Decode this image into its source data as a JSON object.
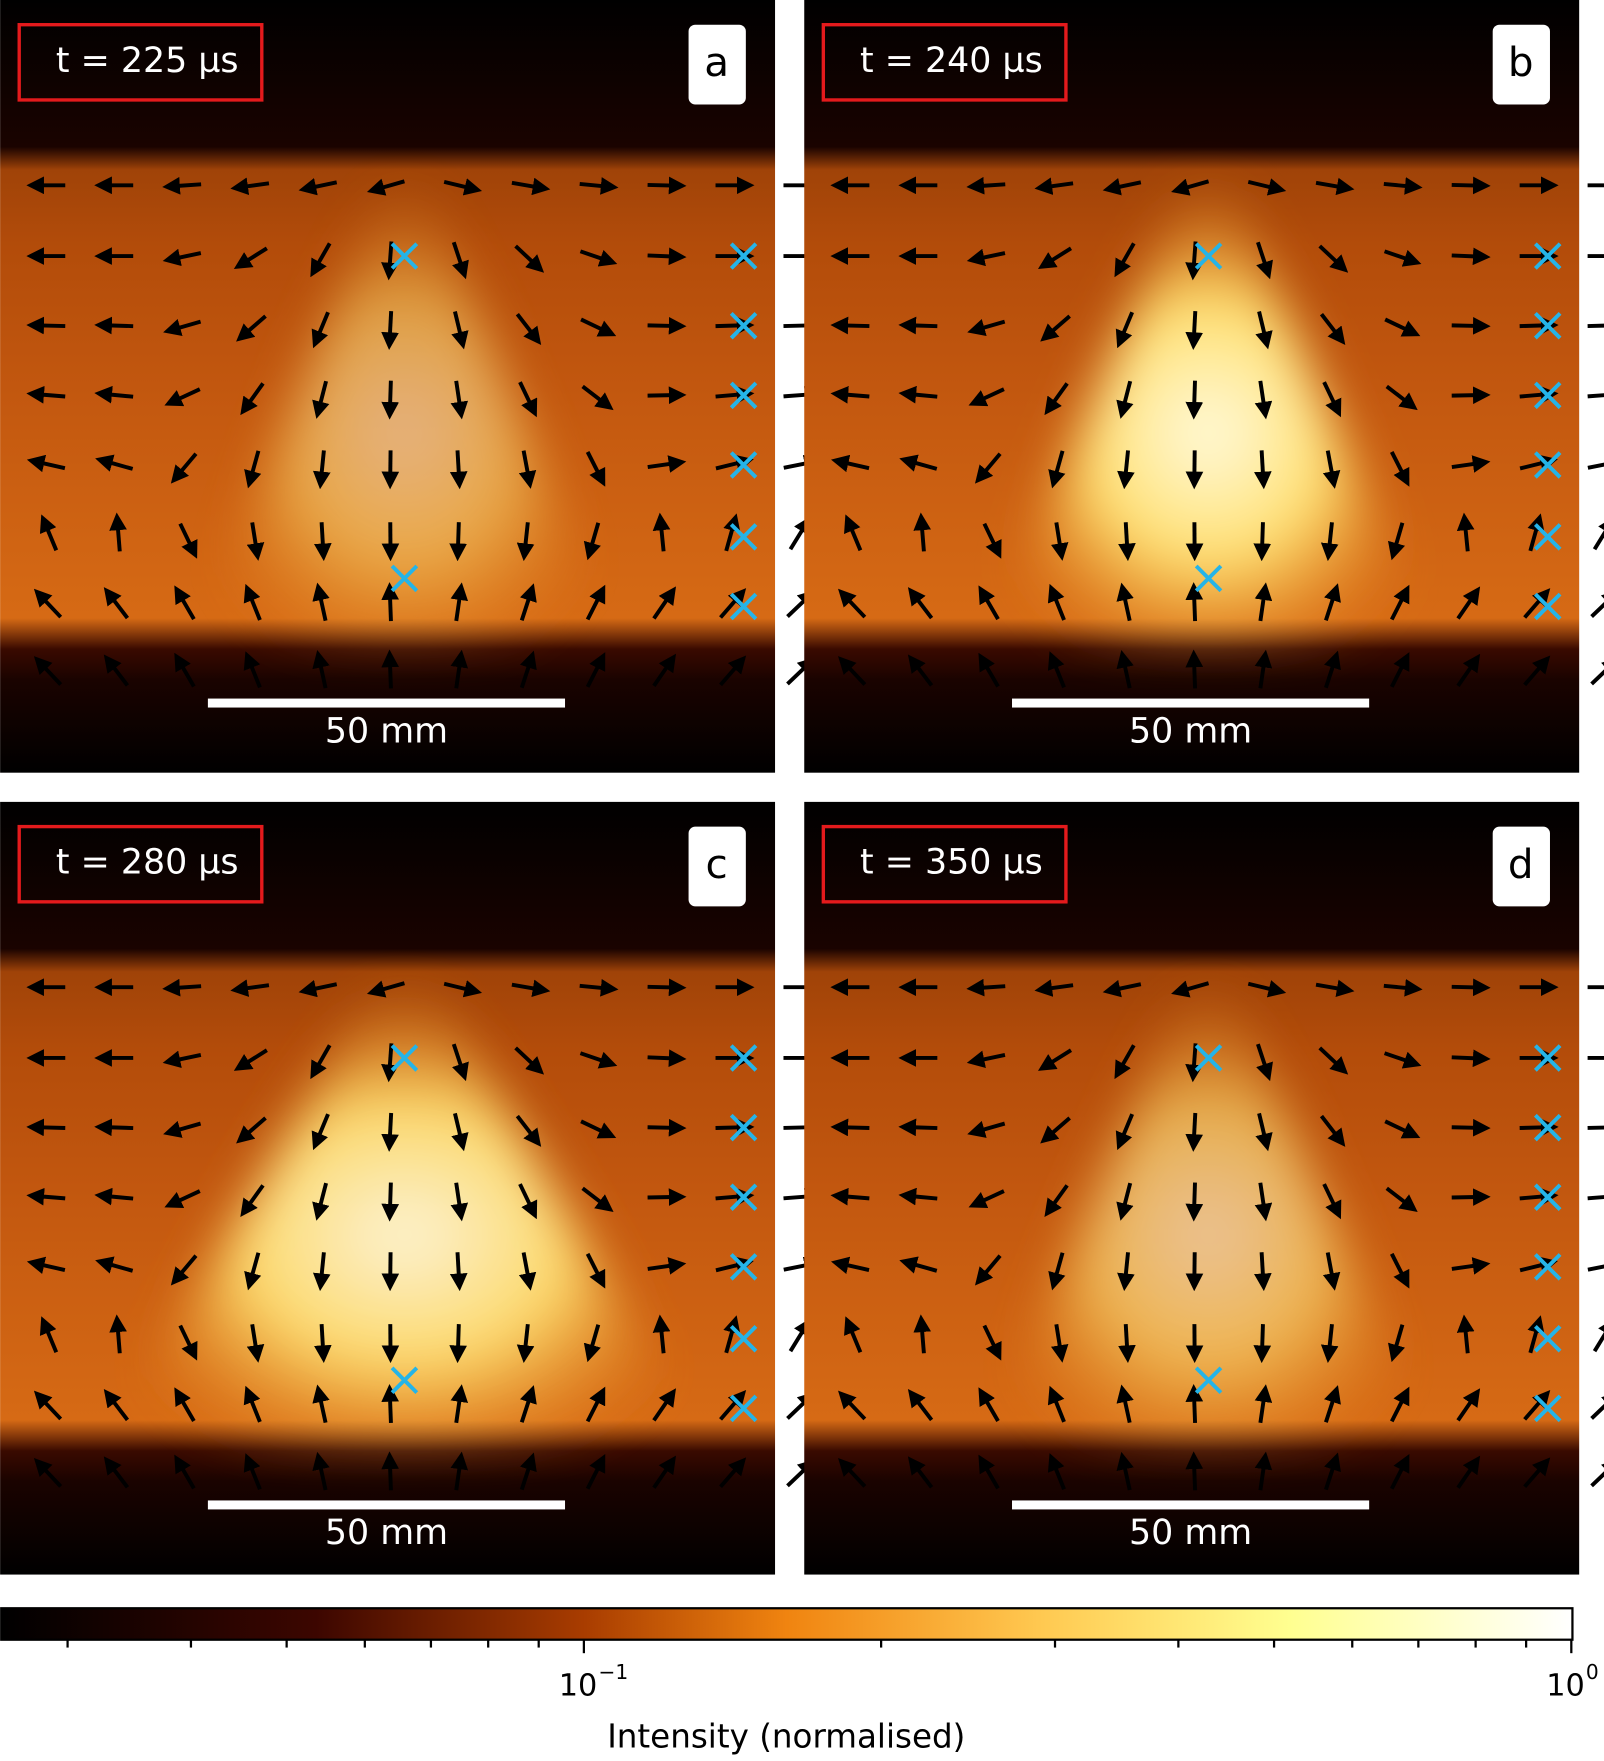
{
  "panels": [
    {
      "label": "a",
      "time": "t = 225 µs",
      "scale_bar": "50 mm"
    },
    {
      "label": "b",
      "time": "t = 240 µs",
      "scale_bar": "50 mm"
    },
    {
      "label": "c",
      "time": "t = 280 µs",
      "scale_bar": "50 mm"
    },
    {
      "label": "d",
      "time": "t = 350 µs",
      "scale_bar": "50 mm"
    }
  ],
  "colorbar": {
    "label": "Intensity (normalised)",
    "scale": "log",
    "lim": [
      0.0257,
      1
    ],
    "ticks": [
      {
        "value": 0.1,
        "base": "10",
        "exponent": "−1"
      },
      {
        "value": 1,
        "base": "10",
        "exponent": "0"
      }
    ],
    "minor_ticks": [
      0.03,
      0.04,
      0.05,
      0.06,
      0.07,
      0.08,
      0.09,
      0.2,
      0.3,
      0.4,
      0.5,
      0.6,
      0.7,
      0.8,
      0.9
    ]
  }
}
